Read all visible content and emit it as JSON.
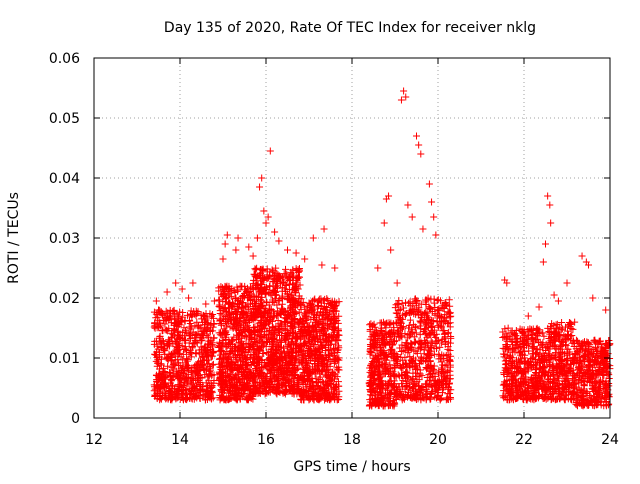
{
  "chart_data": {
    "type": "scatter",
    "title": "Day 135 of 2020, Rate Of TEC Index for receiver nklg",
    "xlabel": "GPS time / hours",
    "ylabel": "ROTI / TECUs",
    "xlim": [
      12,
      24
    ],
    "ylim": [
      0,
      0.06
    ],
    "xticks": [
      "12",
      "14",
      "16",
      "18",
      "20",
      "22",
      "24"
    ],
    "yticks": [
      "0",
      "0.01",
      "0.02",
      "0.03",
      "0.04",
      "0.05",
      "0.06"
    ],
    "grid": true,
    "legend": "none",
    "marker": "+",
    "color": "#ff0000",
    "series": [
      {
        "name": "ROTI",
        "dense_segments": [
          {
            "x_start": 13.4,
            "x_end": 14.8,
            "y_min": 0.003,
            "y_max": 0.018,
            "count": 700
          },
          {
            "x_start": 14.9,
            "x_end": 15.7,
            "y_min": 0.003,
            "y_max": 0.022,
            "count": 650
          },
          {
            "x_start": 15.7,
            "x_end": 16.8,
            "y_min": 0.004,
            "y_max": 0.025,
            "count": 950
          },
          {
            "x_start": 16.8,
            "x_end": 17.7,
            "y_min": 0.003,
            "y_max": 0.02,
            "count": 650
          },
          {
            "x_start": 18.4,
            "x_end": 19.0,
            "y_min": 0.002,
            "y_max": 0.016,
            "count": 380
          },
          {
            "x_start": 19.0,
            "x_end": 20.3,
            "y_min": 0.003,
            "y_max": 0.02,
            "count": 600
          },
          {
            "x_start": 21.5,
            "x_end": 22.6,
            "y_min": 0.003,
            "y_max": 0.015,
            "count": 520
          },
          {
            "x_start": 22.6,
            "x_end": 23.2,
            "y_min": 0.003,
            "y_max": 0.016,
            "count": 300
          },
          {
            "x_start": 23.2,
            "x_end": 24.0,
            "y_min": 0.002,
            "y_max": 0.013,
            "count": 380
          }
        ],
        "points": [
          [
            13.45,
            0.0195
          ],
          [
            13.5,
            0.018
          ],
          [
            13.7,
            0.021
          ],
          [
            13.9,
            0.0225
          ],
          [
            14.05,
            0.0215
          ],
          [
            14.2,
            0.02
          ],
          [
            14.3,
            0.0225
          ],
          [
            14.6,
            0.019
          ],
          [
            14.8,
            0.0195
          ],
          [
            15.0,
            0.0265
          ],
          [
            15.05,
            0.029
          ],
          [
            15.1,
            0.0305
          ],
          [
            15.3,
            0.028
          ],
          [
            15.35,
            0.03
          ],
          [
            15.6,
            0.0285
          ],
          [
            15.7,
            0.027
          ],
          [
            15.8,
            0.03
          ],
          [
            15.85,
            0.0385
          ],
          [
            15.9,
            0.04
          ],
          [
            15.95,
            0.0345
          ],
          [
            16.0,
            0.0325
          ],
          [
            16.05,
            0.0335
          ],
          [
            16.1,
            0.0445
          ],
          [
            16.2,
            0.031
          ],
          [
            16.3,
            0.0295
          ],
          [
            16.5,
            0.028
          ],
          [
            16.7,
            0.0275
          ],
          [
            16.9,
            0.0265
          ],
          [
            17.1,
            0.03
          ],
          [
            17.3,
            0.0255
          ],
          [
            17.35,
            0.0315
          ],
          [
            17.6,
            0.025
          ],
          [
            18.6,
            0.025
          ],
          [
            18.75,
            0.0325
          ],
          [
            18.8,
            0.0365
          ],
          [
            18.85,
            0.037
          ],
          [
            18.9,
            0.028
          ],
          [
            19.05,
            0.0225
          ],
          [
            19.15,
            0.053
          ],
          [
            19.2,
            0.0545
          ],
          [
            19.25,
            0.0535
          ],
          [
            19.3,
            0.0355
          ],
          [
            19.4,
            0.0335
          ],
          [
            19.5,
            0.047
          ],
          [
            19.55,
            0.0455
          ],
          [
            19.6,
            0.044
          ],
          [
            19.65,
            0.0315
          ],
          [
            19.8,
            0.039
          ],
          [
            19.85,
            0.036
          ],
          [
            19.9,
            0.0335
          ],
          [
            19.95,
            0.0305
          ],
          [
            21.55,
            0.023
          ],
          [
            21.6,
            0.0225
          ],
          [
            22.1,
            0.017
          ],
          [
            22.35,
            0.0185
          ],
          [
            22.55,
            0.037
          ],
          [
            22.6,
            0.0355
          ],
          [
            22.62,
            0.0325
          ],
          [
            22.5,
            0.029
          ],
          [
            22.45,
            0.026
          ],
          [
            22.7,
            0.0205
          ],
          [
            22.8,
            0.0195
          ],
          [
            23.0,
            0.0225
          ],
          [
            23.35,
            0.027
          ],
          [
            23.45,
            0.026
          ],
          [
            23.5,
            0.0255
          ],
          [
            23.6,
            0.02
          ],
          [
            23.9,
            0.018
          ]
        ]
      }
    ]
  }
}
